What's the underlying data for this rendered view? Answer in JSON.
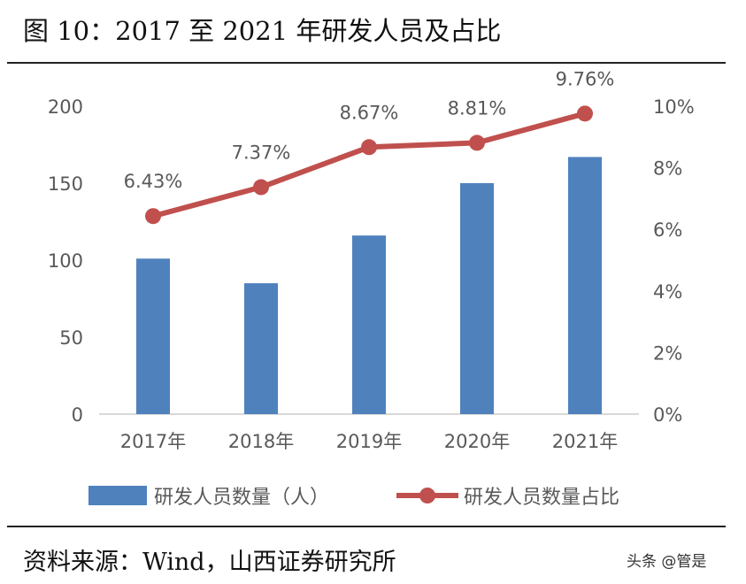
{
  "title": "图 10：2017 至 2021 年研发人员及占比",
  "source": "资料来源：Wind，山西证券研究所",
  "watermark": "头条 @管是",
  "chart_data": {
    "type": "bar+line",
    "categories": [
      "2017年",
      "2018年",
      "2019年",
      "2020年",
      "2021年"
    ],
    "series": [
      {
        "name": "研发人员数量（人）",
        "type": "bar",
        "axis": "left",
        "color": "#4F81BD",
        "values": [
          101,
          85,
          116,
          150,
          167
        ]
      },
      {
        "name": "研发人员数量占比",
        "type": "line",
        "axis": "right",
        "color": "#C0504D",
        "values": [
          6.43,
          7.37,
          8.67,
          8.81,
          9.76
        ],
        "labels": [
          "6.43%",
          "7.37%",
          "8.67%",
          "8.81%",
          "9.76%"
        ]
      }
    ],
    "left_axis": {
      "range": [
        0,
        200
      ],
      "ticks": [
        "0",
        "50",
        "100",
        "150",
        "200"
      ]
    },
    "right_axis": {
      "range": [
        0,
        10
      ],
      "ticks": [
        "0%",
        "2%",
        "4%",
        "6%",
        "8%",
        "10%"
      ]
    },
    "grid": false,
    "legend": "bottom"
  }
}
